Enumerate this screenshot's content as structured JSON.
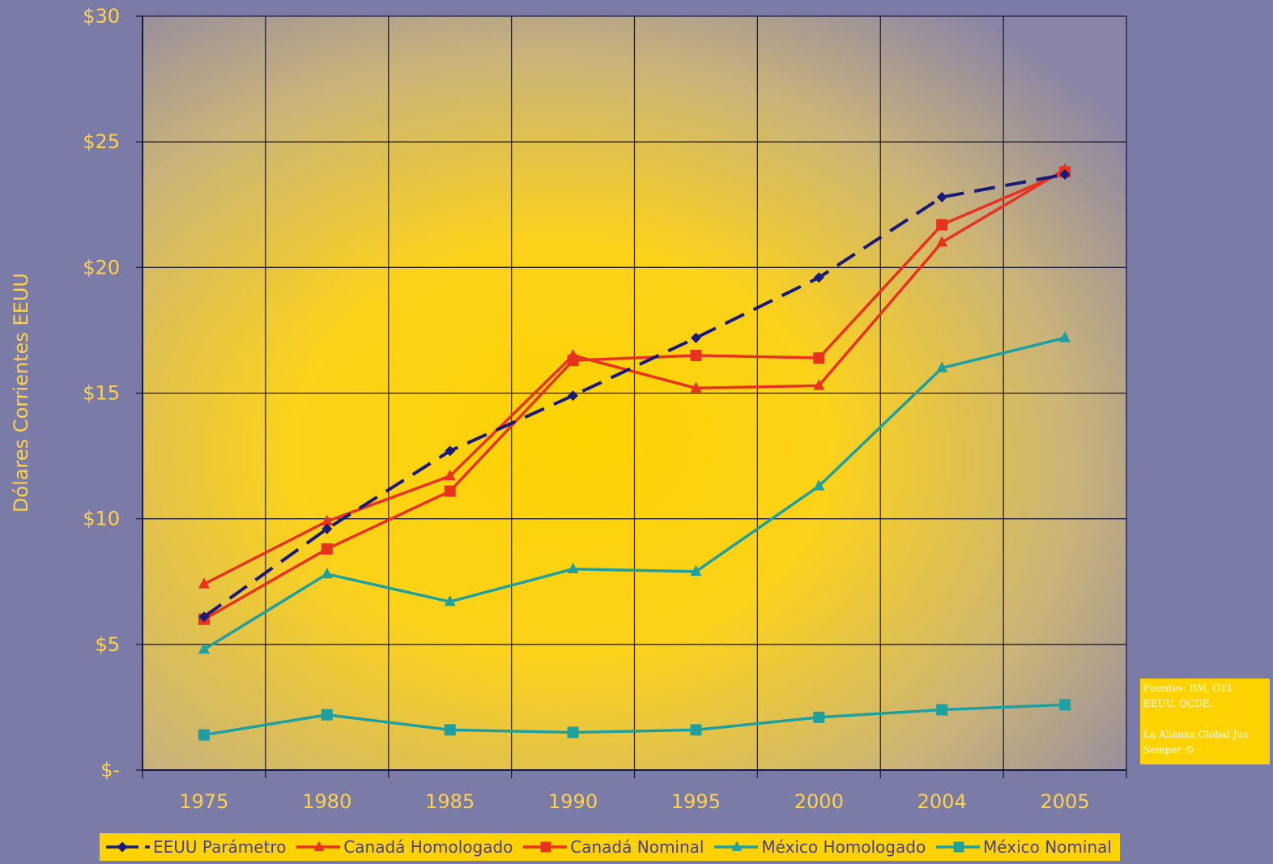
{
  "chart_data": {
    "type": "line",
    "title": "",
    "xlabel": "",
    "ylabel": "Dólares Corrientes EEUU",
    "categories": [
      "1975",
      "1980",
      "1985",
      "1990",
      "1995",
      "2000",
      "2004",
      "2005"
    ],
    "ylim": [
      0,
      30
    ],
    "y_ticks": [
      {
        "value": 0,
        "label": "$-"
      },
      {
        "value": 5,
        "label": "$5"
      },
      {
        "value": 10,
        "label": "$10"
      },
      {
        "value": 15,
        "label": "$15"
      },
      {
        "value": 20,
        "label": "$20"
      },
      {
        "value": 25,
        "label": "$25"
      },
      {
        "value": 30,
        "label": "$30"
      }
    ],
    "grid": true,
    "legend_position": "bottom",
    "series": [
      {
        "name": "EEUU Parámetro",
        "color": "#1a1a78",
        "marker": "diamond",
        "dash": true,
        "values": [
          6.1,
          9.6,
          12.7,
          14.9,
          17.2,
          19.6,
          22.8,
          23.7
        ]
      },
      {
        "name": "Canadá Homologado",
        "color": "#e8321e",
        "marker": "triangle",
        "dash": false,
        "values": [
          7.4,
          9.9,
          11.7,
          16.5,
          15.2,
          15.3,
          21.0,
          23.9
        ]
      },
      {
        "name": "Canadá Nominal",
        "color": "#e8321e",
        "marker": "square",
        "dash": false,
        "values": [
          6.0,
          8.8,
          11.1,
          16.3,
          16.5,
          16.4,
          21.7,
          23.8
        ]
      },
      {
        "name": "México Homologado",
        "color": "#1fa0a0",
        "marker": "triangle",
        "dash": false,
        "values": [
          4.8,
          7.8,
          6.7,
          8.0,
          7.9,
          11.3,
          16.0,
          17.2
        ]
      },
      {
        "name": "México Nominal",
        "color": "#1fa0a0",
        "marker": "square",
        "dash": false,
        "values": [
          1.4,
          2.2,
          1.6,
          1.5,
          1.6,
          2.1,
          2.4,
          2.6
        ]
      }
    ]
  },
  "source_note": {
    "line1": "Fuentes: BM, OEL",
    "line2": "EEUU, OCDE.",
    "line3": "La Alianza Global Jus",
    "line4": "Semper ©"
  },
  "colors": {
    "background": "#7b7ba8",
    "plot_gradient_center": "#ffd200",
    "plot_gradient_edge": "#8b86a8",
    "tick_label": "#ffd24a",
    "grid": "#1c1a3a"
  }
}
